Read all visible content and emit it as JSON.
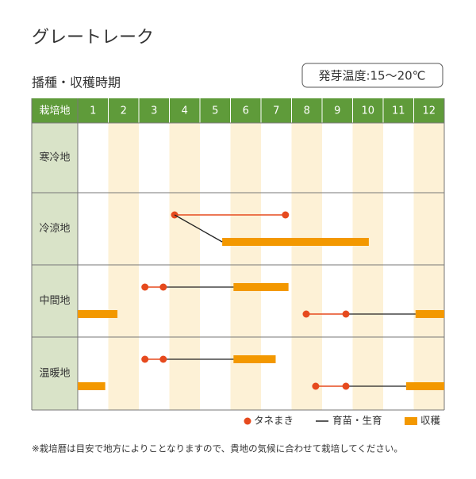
{
  "chart_data": {
    "type": "calendar",
    "title": "グレートレーク",
    "subtitle": "播種・収穫時期",
    "note": "発芽温度:15〜20℃",
    "header": "栽培地",
    "categories": [
      "1",
      "2",
      "3",
      "4",
      "5",
      "6",
      "7",
      "8",
      "9",
      "10",
      "11",
      "12"
    ],
    "xlim": [
      1,
      13
    ],
    "rows": [
      {
        "label": "寒冷地",
        "lanes": []
      },
      {
        "label": "冷涼地",
        "lanes": [
          {
            "sow": [
              4.17,
              7.8
            ]
          },
          {
            "grow": [
              4.17,
              5.73
            ],
            "harvest": [
              [
                5.73,
                10.53
              ]
            ]
          }
        ]
      },
      {
        "label": "中間地",
        "lanes": [
          {
            "sow": [
              3.2,
              3.8
            ],
            "grow": [
              3.8,
              6.1
            ],
            "harvest": [
              [
                6.1,
                7.9
              ]
            ]
          },
          {
            "sow": [
              8.48,
              9.78
            ],
            "grow": [
              9.78,
              12.06
            ],
            "harvest": [
              [
                1,
                2.3
              ],
              [
                12.06,
                13
              ]
            ]
          }
        ]
      },
      {
        "label": "温暖地",
        "lanes": [
          {
            "sow": [
              3.2,
              3.8
            ],
            "grow": [
              3.8,
              6.1
            ],
            "harvest": [
              [
                6.1,
                7.48
              ]
            ]
          },
          {
            "sow": [
              8.79,
              9.78
            ],
            "grow": [
              9.78,
              11.75
            ],
            "harvest": [
              [
                1,
                1.9
              ],
              [
                11.75,
                13
              ]
            ]
          }
        ]
      }
    ],
    "legend": [
      "タネまき",
      "育苗・生育",
      "収穫"
    ],
    "colors": {
      "sow": "#e64a1e",
      "grow": "#222222",
      "harvest": "#f39800"
    },
    "footnote": "※栽培暦は目安で地方によりことなりますので、貴地の気候に合わせて栽培してください。"
  }
}
